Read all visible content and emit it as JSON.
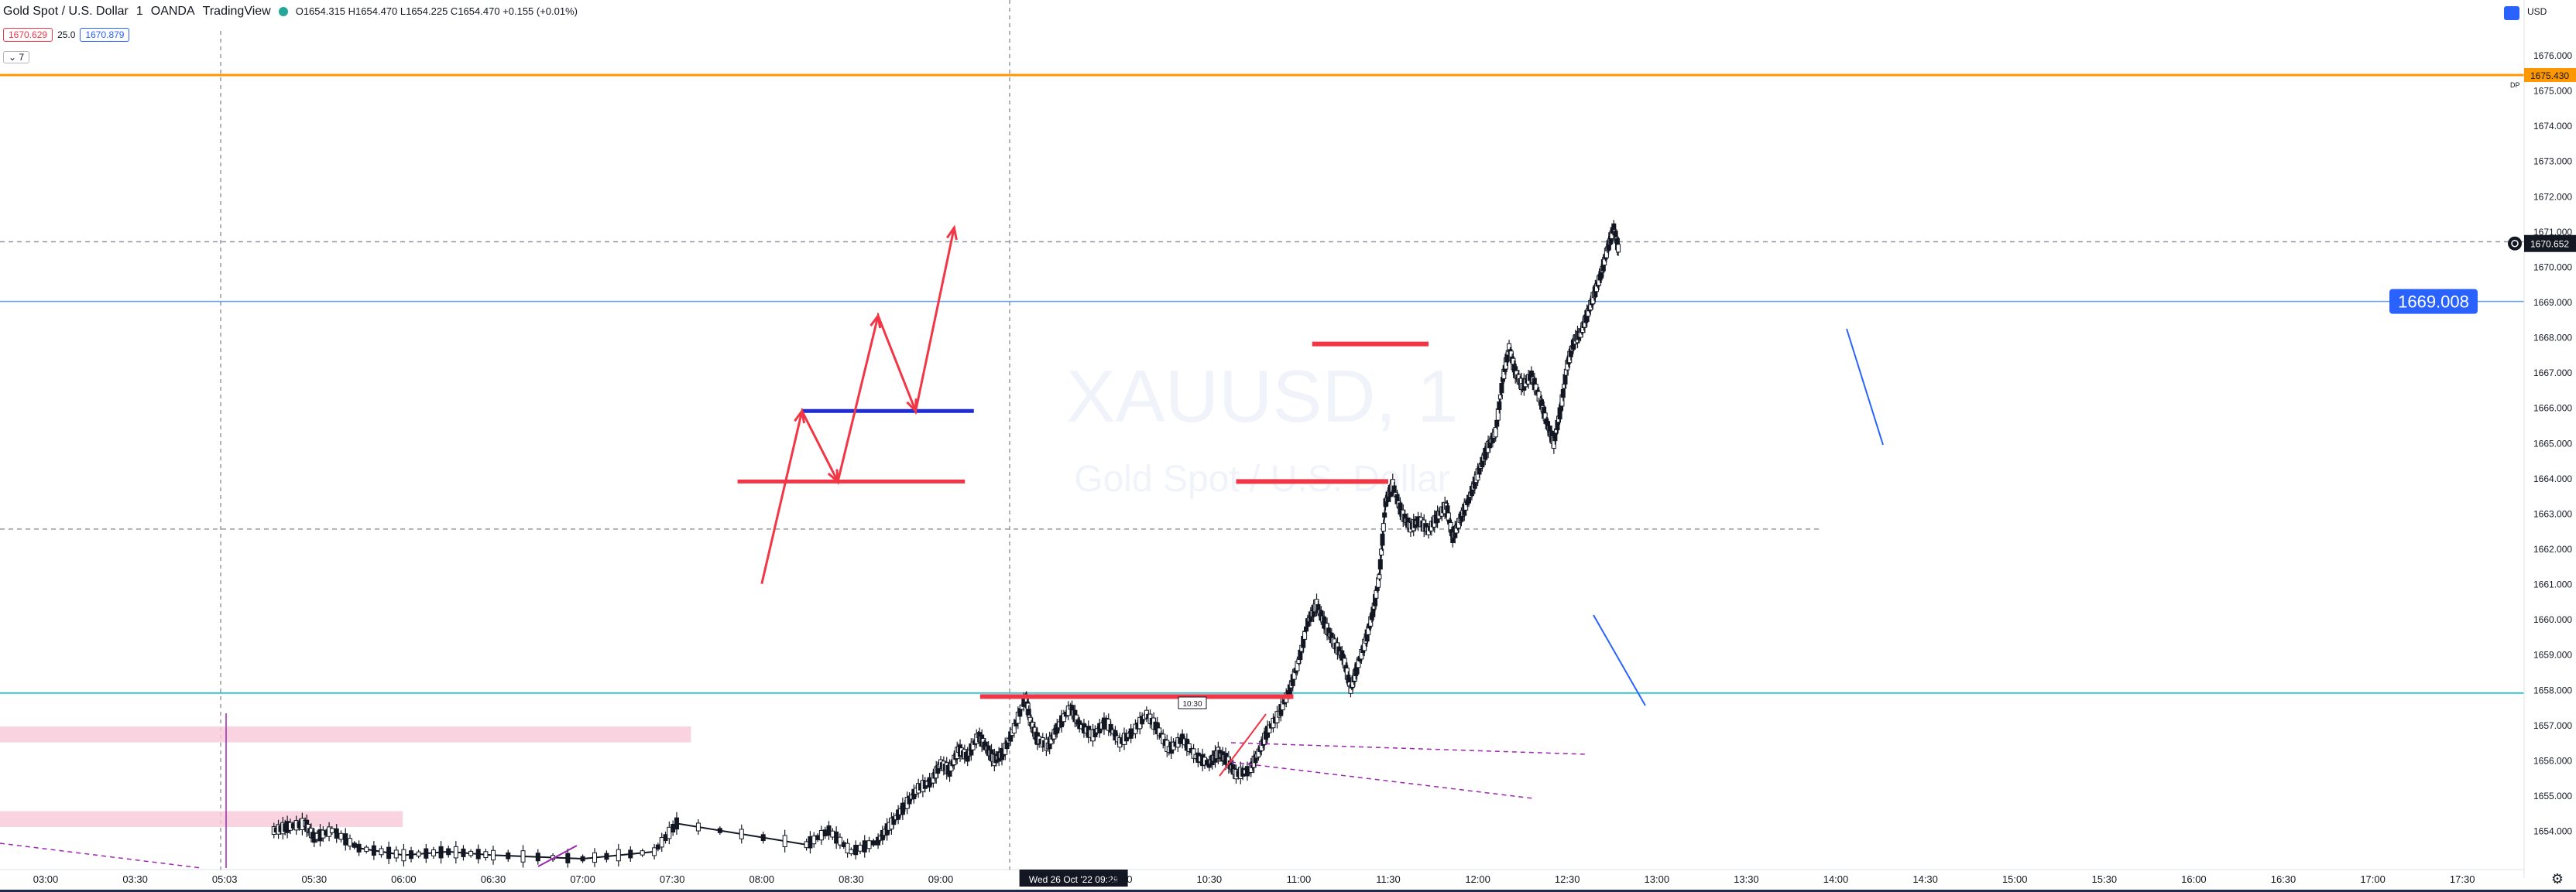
{
  "header": {
    "symbol": "Gold Spot / U.S. Dollar",
    "interval": "1",
    "exchange": "OANDA",
    "source": "TradingView",
    "ohlc": "O1654.315 H1654.470 L1654.225 C1654.470 +0.155 (+0.01%)",
    "bid": "1670.629",
    "spread": "25.0",
    "ask": "1670.879",
    "collapse_label": "7",
    "currency": "USD"
  },
  "watermark": {
    "ticker": "XAUUSD, 1",
    "name": "Gold Spot / U.S. Dollar"
  },
  "colors": {
    "up": "#131722",
    "down": "#131722",
    "annotation_red": "#f23645",
    "blue_level": "#1f2bd6",
    "purple": "#9c27b0"
  },
  "chart_data": {
    "type": "candlestick",
    "x_ticks": [
      "03:00",
      "03:30",
      "05:03",
      "05:30",
      "06:00",
      "06:30",
      "07:00",
      "07:30",
      "08:00",
      "08:30",
      "09:00",
      "Wed 26 Oct '22  09:29",
      "10:00",
      "10:30",
      "11:00",
      "11:30",
      "12:00",
      "12:30",
      "13:00",
      "13:30",
      "14:00",
      "14:30",
      "15:00",
      "15:30",
      "16:00",
      "16:30",
      "17:00",
      "17:30"
    ],
    "y_ticks": [
      "1676.000",
      "1675.000",
      "1674.000",
      "1673.000",
      "1672.000",
      "1671.000",
      "1670.000",
      "1669.000",
      "1668.000",
      "1667.000",
      "1666.000",
      "1665.000",
      "1664.000",
      "1663.000",
      "1662.000",
      "1661.000",
      "1660.000",
      "1659.000",
      "1658.000",
      "1657.000",
      "1656.000",
      "1655.000",
      "1654.000"
    ],
    "ylim": [
      1653.2,
      1676.9
    ],
    "price_labels": {
      "upper_line": "1675.430",
      "dp_label": "DP",
      "last_price": "1670.652",
      "blue_line": "1669.008"
    },
    "horizontal_lines": [
      {
        "name": "orange-level",
        "price": 1675.43,
        "color": "#ff9800"
      },
      {
        "name": "dashed-level-upper",
        "price": 1670.7,
        "color": "#9598a1"
      },
      {
        "name": "blue-level",
        "price": 1669.008,
        "color": "#5b9cf6"
      },
      {
        "name": "dashed-level-lower",
        "price": 1662.55,
        "color": "#9598a1"
      },
      {
        "name": "cyan-level",
        "price": 1657.9,
        "color": "#00bcd4"
      }
    ],
    "red_levels": [
      {
        "start": 10.44,
        "end": 13.94,
        "price": 1657.8
      },
      {
        "start": 13.3,
        "end": 15.0,
        "price": 1663.9
      },
      {
        "start": 14.15,
        "end": 15.45,
        "price": 1667.8
      }
    ],
    "scenario_sketch": {
      "red_level": {
        "start": 7.73,
        "end": 10.27,
        "price": 1663.9
      },
      "blue_level": {
        "start": 8.45,
        "end": 10.37,
        "price": 1665.9
      },
      "path": [
        [
          8.0,
          1661.0
        ],
        [
          8.45,
          1665.9
        ],
        [
          8.85,
          1663.9
        ],
        [
          9.3,
          1668.6
        ],
        [
          9.72,
          1665.9
        ],
        [
          10.15,
          1671.1
        ]
      ]
    },
    "pink_zones": [
      {
        "start": 2.5,
        "end": 10.27,
        "low": 1656.5,
        "high": 1656.95
      },
      {
        "start": 2.5,
        "end": 7.05,
        "low": 1654.1,
        "high": 1654.55
      }
    ],
    "tooltip_label": "10:30",
    "series_path": [
      [
        2.55,
        1654.0
      ],
      [
        2.7,
        1654.1
      ],
      [
        2.9,
        1654.2
      ],
      [
        3.0,
        1653.8
      ],
      [
        3.2,
        1654.0
      ],
      [
        3.5,
        1653.5
      ],
      [
        4.0,
        1653.3
      ],
      [
        4.5,
        1653.4
      ],
      [
        5.0,
        1653.3
      ],
      [
        6.0,
        1653.2
      ],
      [
        6.8,
        1653.4
      ],
      [
        7.05,
        1654.2
      ],
      [
        8.5,
        1653.6
      ],
      [
        8.75,
        1654.0
      ],
      [
        9.0,
        1653.4
      ],
      [
        9.3,
        1653.7
      ],
      [
        9.45,
        1654.2
      ],
      [
        9.6,
        1654.7
      ],
      [
        9.75,
        1655.2
      ],
      [
        9.9,
        1655.4
      ],
      [
        10.0,
        1655.9
      ],
      [
        10.1,
        1655.7
      ],
      [
        10.2,
        1656.3
      ],
      [
        10.3,
        1656.1
      ],
      [
        10.42,
        1656.7
      ],
      [
        10.5,
        1656.4
      ],
      [
        10.6,
        1656.0
      ],
      [
        10.7,
        1656.2
      ],
      [
        10.82,
        1656.9
      ],
      [
        10.95,
        1657.8
      ],
      [
        11.0,
        1657.1
      ],
      [
        11.08,
        1656.6
      ],
      [
        11.2,
        1656.4
      ],
      [
        11.3,
        1656.9
      ],
      [
        11.45,
        1657.5
      ],
      [
        11.55,
        1657.0
      ],
      [
        11.7,
        1656.7
      ],
      [
        11.85,
        1657.1
      ],
      [
        12.0,
        1656.5
      ],
      [
        12.15,
        1656.8
      ],
      [
        12.3,
        1657.3
      ],
      [
        12.42,
        1656.9
      ],
      [
        12.55,
        1656.3
      ],
      [
        12.7,
        1656.6
      ],
      [
        12.85,
        1656.1
      ],
      [
        13.0,
        1655.9
      ],
      [
        13.1,
        1656.2
      ],
      [
        13.2,
        1656.0
      ],
      [
        13.3,
        1655.6
      ],
      [
        13.45,
        1655.7
      ],
      [
        13.55,
        1656.2
      ],
      [
        13.65,
        1656.8
      ],
      [
        13.78,
        1657.3
      ],
      [
        13.9,
        1658.0
      ],
      [
        14.0,
        1658.8
      ],
      [
        14.1,
        1659.9
      ],
      [
        14.2,
        1660.4
      ],
      [
        14.3,
        1659.8
      ],
      [
        14.4,
        1659.3
      ],
      [
        14.5,
        1658.9
      ],
      [
        14.58,
        1658.0
      ],
      [
        14.65,
        1658.6
      ],
      [
        14.75,
        1659.4
      ],
      [
        14.83,
        1660.2
      ],
      [
        14.9,
        1661.2
      ],
      [
        14.97,
        1663.3
      ],
      [
        15.05,
        1663.8
      ],
      [
        15.15,
        1663.0
      ],
      [
        15.25,
        1662.6
      ],
      [
        15.35,
        1662.8
      ],
      [
        15.45,
        1662.5
      ],
      [
        15.55,
        1662.9
      ],
      [
        15.65,
        1663.2
      ],
      [
        15.72,
        1662.3
      ],
      [
        15.8,
        1662.8
      ],
      [
        15.9,
        1663.4
      ],
      [
        16.0,
        1664.1
      ],
      [
        16.1,
        1664.8
      ],
      [
        16.2,
        1665.3
      ],
      [
        16.28,
        1666.8
      ],
      [
        16.35,
        1667.7
      ],
      [
        16.42,
        1667.0
      ],
      [
        16.5,
        1666.6
      ],
      [
        16.6,
        1666.9
      ],
      [
        16.7,
        1666.2
      ],
      [
        16.78,
        1665.5
      ],
      [
        16.85,
        1665.0
      ],
      [
        16.93,
        1666.0
      ],
      [
        17.0,
        1667.2
      ],
      [
        17.08,
        1667.9
      ],
      [
        17.15,
        1668.1
      ],
      [
        17.22,
        1668.6
      ],
      [
        17.3,
        1669.2
      ],
      [
        17.38,
        1669.8
      ],
      [
        17.45,
        1670.5
      ],
      [
        17.52,
        1671.1
      ],
      [
        17.58,
        1670.4
      ]
    ]
  }
}
